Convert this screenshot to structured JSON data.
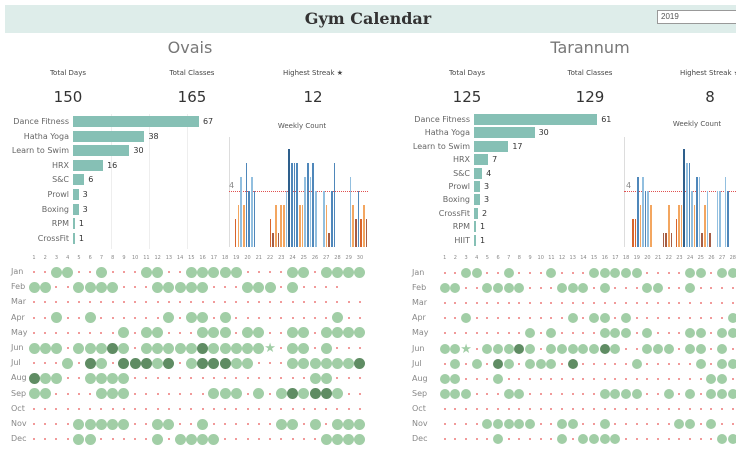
{
  "header": {
    "title": "Gym Calendar",
    "year_value": "2019"
  },
  "colors": {
    "light_green": "#a1cea6",
    "dark_green": "#5f8c63",
    "bar": "#86c0b5",
    "dot": "#ec7a7a",
    "header_bg": "#deedea",
    "week": {
      "db": "#2e5f8c",
      "b": "#4f87ba",
      "lb": "#92bfdf",
      "o": "#f3a660",
      "do": "#d8652c",
      "br": "#a65d44"
    }
  },
  "calendar_legend": {
    "0": "no class",
    "1": "class day",
    "2": "multiple classes",
    "3": "highest streak star"
  },
  "day_headers": [
    "1",
    "2",
    "3",
    "4",
    "5",
    "6",
    "7",
    "8",
    "9",
    "10",
    "11",
    "12",
    "13",
    "14",
    "15",
    "16",
    "17",
    "18",
    "19",
    "20",
    "21",
    "22",
    "23",
    "24",
    "25",
    "26",
    "27",
    "28",
    "29",
    "30",
    "31"
  ],
  "months": [
    "Jan",
    "Feb",
    "Mar",
    "Apr",
    "May",
    "Jun",
    "Jul",
    "Aug",
    "Sep",
    "Oct",
    "Nov",
    "Dec"
  ],
  "people": [
    {
      "name": "Ovais",
      "kpis": [
        {
          "label": "Total Days",
          "value": "150"
        },
        {
          "label": "Total Classes",
          "value": "165"
        },
        {
          "label": "Highest Streak ★",
          "value": "12"
        }
      ],
      "classes": [
        {
          "label": "Dance Fitness",
          "value": 67
        },
        {
          "label": "Hatha Yoga",
          "value": 38
        },
        {
          "label": "Learn to Swim",
          "value": 30
        },
        {
          "label": "HRX",
          "value": 16
        },
        {
          "label": "S&C",
          "value": 6
        },
        {
          "label": "Prowl",
          "value": 3
        },
        {
          "label": "Boxing",
          "value": 3
        },
        {
          "label": "RPM",
          "value": 1
        },
        {
          "label": "CrossFit",
          "value": 1
        }
      ],
      "weekly": {
        "title": "Weekly Count",
        "ref_label": "4",
        "ref_value": 4,
        "bars": [
          [
            2,
            "do"
          ],
          [
            3,
            "o"
          ],
          [
            5,
            "lb"
          ],
          [
            3,
            "o"
          ],
          [
            6,
            "b"
          ],
          [
            4,
            "b"
          ],
          [
            5,
            "lb"
          ],
          [
            4,
            "b"
          ],
          [
            0,
            ""
          ],
          [
            0,
            ""
          ],
          [
            0,
            ""
          ],
          [
            0,
            ""
          ],
          [
            0,
            ""
          ],
          [
            2,
            "do"
          ],
          [
            1,
            "br"
          ],
          [
            3,
            "o"
          ],
          [
            1,
            "br"
          ],
          [
            3,
            "o"
          ],
          [
            3,
            "o"
          ],
          [
            4,
            "lb"
          ],
          [
            7,
            "db"
          ],
          [
            6,
            "b"
          ],
          [
            6,
            "b"
          ],
          [
            6,
            "b"
          ],
          [
            3,
            "o"
          ],
          [
            3,
            "o"
          ],
          [
            5,
            "lb"
          ],
          [
            6,
            "b"
          ],
          [
            5,
            "lb"
          ],
          [
            6,
            "b"
          ],
          [
            4,
            "lb"
          ],
          [
            0,
            ""
          ],
          [
            0,
            ""
          ],
          [
            4,
            "lb"
          ],
          [
            3,
            "o"
          ],
          [
            1,
            "br"
          ],
          [
            4,
            "b"
          ],
          [
            6,
            "b"
          ],
          [
            0,
            ""
          ],
          [
            0,
            ""
          ],
          [
            0,
            ""
          ],
          [
            0,
            ""
          ],
          [
            0,
            ""
          ],
          [
            5,
            "lb"
          ],
          [
            3,
            "o"
          ],
          [
            2,
            "br"
          ],
          [
            4,
            "b"
          ],
          [
            2,
            "do"
          ],
          [
            3,
            "o"
          ],
          [
            2,
            "br"
          ],
          [
            3,
            "o"
          ],
          [
            2,
            "do"
          ]
        ]
      },
      "calendar": [
        "0011001000110011111000011011111",
        "1100111100011111000111010000---",
        "0000000000000000000000000000000",
        "0010010000001011010000000001000-",
        "0000000010110001110110011011111",
        "111011121011111211111301101000-",
        "0001021022212012221100011111121",
        "2110011110000000000000000110001",
        "110000111000000011101012122100-",
        "0000000000000000000000000000000",
        "000011111001100100000011010111-",
        "0000110000010111100000000011111"
      ]
    },
    {
      "name": "Tarannum",
      "kpis": [
        {
          "label": "Total Days",
          "value": "125"
        },
        {
          "label": "Total Classes",
          "value": "129"
        },
        {
          "label": "Highest Streak ★",
          "value": "8"
        }
      ],
      "classes": [
        {
          "label": "Dance Fitness",
          "value": 61
        },
        {
          "label": "Hatha Yoga",
          "value": 30
        },
        {
          "label": "Learn to Swim",
          "value": 17
        },
        {
          "label": "HRX",
          "value": 7
        },
        {
          "label": "S&C",
          "value": 4
        },
        {
          "label": "Prowl",
          "value": 3
        },
        {
          "label": "Boxing",
          "value": 3
        },
        {
          "label": "CrossFit",
          "value": 2
        },
        {
          "label": "RPM",
          "value": 1
        },
        {
          "label": "HIIT",
          "value": 1
        }
      ],
      "weekly": {
        "title": "Weekly Count",
        "ref_label": "4",
        "ref_value": 4,
        "bars": [
          [
            2,
            "do"
          ],
          [
            2,
            "do"
          ],
          [
            5,
            "b"
          ],
          [
            3,
            "o"
          ],
          [
            5,
            "lb"
          ],
          [
            4,
            "b"
          ],
          [
            4,
            "lb"
          ],
          [
            3,
            "o"
          ],
          [
            0,
            ""
          ],
          [
            0,
            ""
          ],
          [
            0,
            ""
          ],
          [
            0,
            ""
          ],
          [
            1,
            "br"
          ],
          [
            1,
            "br"
          ],
          [
            3,
            "o"
          ],
          [
            1,
            "br"
          ],
          [
            0,
            ""
          ],
          [
            2,
            "do"
          ],
          [
            3,
            "o"
          ],
          [
            3,
            "o"
          ],
          [
            7,
            "db"
          ],
          [
            6,
            "lb"
          ],
          [
            6,
            "b"
          ],
          [
            4,
            "lb"
          ],
          [
            3,
            "o"
          ],
          [
            5,
            "b"
          ],
          [
            5,
            "lb"
          ],
          [
            1,
            "br"
          ],
          [
            3,
            "o"
          ],
          [
            4,
            "lb"
          ],
          [
            1,
            "br"
          ],
          [
            0,
            ""
          ],
          [
            0,
            ""
          ],
          [
            4,
            "lb"
          ],
          [
            4,
            "lb"
          ],
          [
            0,
            ""
          ],
          [
            5,
            "lb"
          ],
          [
            4,
            "b"
          ]
        ]
      },
      "calendar": [
        "0011001000100011111000011011",
        "1100111100011101000110010000",
        "0000000000000000000000000000",
        "0010000000001011010000000001",
        "0000000010100001110100011011",
        "1130111210111112100111011010",
        "0101021011102000001000001011",
        "1100010000000000000000000110",
        "1110001100000001111001010111",
        "0000000000000000000000000000",
        "0000111110011001000000110100",
        "0000010000010111100000000011"
      ]
    }
  ]
}
